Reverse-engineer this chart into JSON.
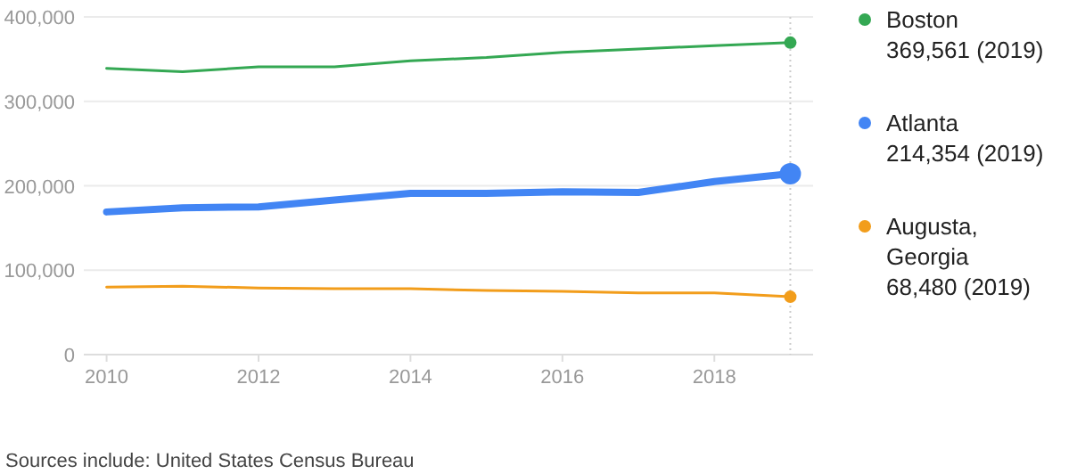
{
  "chart_data": {
    "type": "line",
    "x": [
      2010,
      2011,
      2012,
      2013,
      2014,
      2015,
      2016,
      2017,
      2018,
      2019
    ],
    "series": [
      {
        "name": "Boston",
        "color": "#34a853",
        "values": [
          339000,
          335000,
          341000,
          341000,
          348000,
          352000,
          358000,
          362000,
          366000,
          369561
        ]
      },
      {
        "name": "Atlanta",
        "color": "#4285f4",
        "values": [
          169000,
          174000,
          175000,
          183000,
          191000,
          191000,
          193000,
          192000,
          205000,
          214354
        ]
      },
      {
        "name": "Augusta, Georgia",
        "color": "#f29d1b",
        "values": [
          80000,
          81000,
          79000,
          78000,
          78000,
          76000,
          75000,
          73000,
          73000,
          68480
        ]
      }
    ],
    "value_labels": [
      "369,561 (2019)",
      "214,354 (2019)",
      "68,480 (2019)"
    ],
    "xlim": [
      2009.7,
      2019.3
    ],
    "xticks": [
      2010,
      2012,
      2014,
      2016,
      2018
    ],
    "ylim": [
      0,
      400000
    ],
    "yticks": [
      {
        "value": 0,
        "label": "0"
      },
      {
        "value": 100000,
        "label": "100,000"
      },
      {
        "value": 200000,
        "label": "200,000"
      },
      {
        "value": 300000,
        "label": "300,000"
      },
      {
        "value": 400000,
        "label": "400,000"
      }
    ],
    "grid": "y",
    "legend": "right",
    "ref_lines": [
      {
        "axis": "x",
        "value": 2019,
        "color": "#cccccc",
        "line_style": "dotted"
      }
    ],
    "annotations": [
      "Sources include: United States Census Bureau"
    ]
  }
}
